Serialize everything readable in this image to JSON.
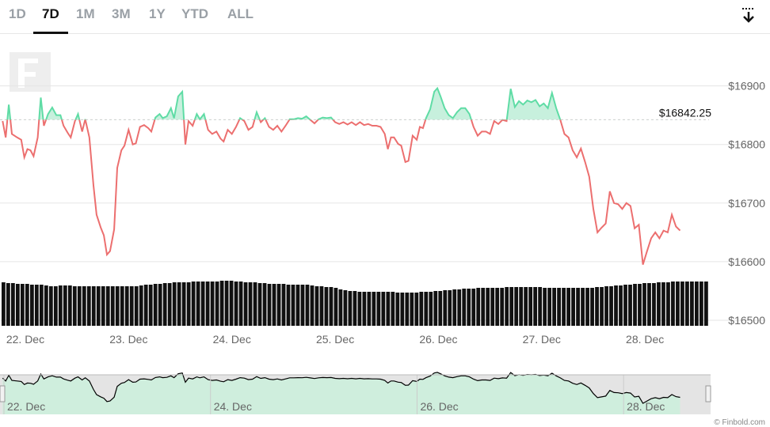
{
  "range_tabs": [
    {
      "label": "1D",
      "active": false
    },
    {
      "label": "7D",
      "active": true
    },
    {
      "label": "1M",
      "active": false
    },
    {
      "label": "3M",
      "active": false
    },
    {
      "label": "1Y",
      "active": false
    },
    {
      "label": "YTD",
      "active": false
    },
    {
      "label": "ALL",
      "active": false
    }
  ],
  "download_icon": "download-arrow-icon",
  "logo_icon": "finbold-f-logo-icon",
  "watermark": "© Finbold.com",
  "colors": {
    "above": "#5fdca5",
    "above_fill": "#c7f0dd",
    "below": "#ec6f6f",
    "volume": "#111111",
    "grid": "#e5e5e5",
    "axis_text": "#666666",
    "navigator_line": "#000000",
    "navigator_fill": "#cfeedd",
    "navigator_mask": "#e4e4e4"
  },
  "chart_data": {
    "type": "line",
    "reference_value": 16842.25,
    "reference_label": "$16842.25",
    "ylim": [
      16500,
      16950
    ],
    "y_ticks": [
      16500,
      16600,
      16700,
      16800,
      16900
    ],
    "y_tick_labels": [
      "$16500",
      "$16600",
      "$16700",
      "$16800",
      "$16900"
    ],
    "x_range": [
      21.77,
      28.62
    ],
    "x_ticks": [
      22,
      23,
      24,
      25,
      26,
      27,
      28
    ],
    "x_tick_labels": [
      "22. Dec",
      "23. Dec",
      "24. Dec",
      "25. Dec",
      "26. Dec",
      "27. Dec",
      "28. Dec"
    ],
    "navigator_x_tick_labels": [
      "22. Dec",
      "24. Dec",
      "26. Dec",
      "28. Dec"
    ],
    "series": [
      {
        "values": [
          [
            21.78,
            16840
          ],
          [
            21.81,
            16812
          ],
          [
            21.84,
            16868
          ],
          [
            21.87,
            16818
          ],
          [
            21.92,
            16812
          ],
          [
            21.96,
            16808
          ],
          [
            21.99,
            16778
          ],
          [
            22.02,
            16792
          ],
          [
            22.05,
            16790
          ],
          [
            22.08,
            16780
          ],
          [
            22.12,
            16812
          ],
          [
            22.15,
            16880
          ],
          [
            22.18,
            16832
          ],
          [
            22.22,
            16852
          ],
          [
            22.26,
            16863
          ],
          [
            22.3,
            16850
          ],
          [
            22.34,
            16850
          ],
          [
            22.37,
            16832
          ],
          [
            22.41,
            16820
          ],
          [
            22.44,
            16812
          ],
          [
            22.48,
            16840
          ],
          [
            22.51,
            16852
          ],
          [
            22.55,
            16822
          ],
          [
            22.58,
            16843
          ],
          [
            22.62,
            16812
          ],
          [
            22.66,
            16730
          ],
          [
            22.69,
            16680
          ],
          [
            22.73,
            16658
          ],
          [
            22.76,
            16645
          ],
          [
            22.79,
            16612
          ],
          [
            22.82,
            16618
          ],
          [
            22.86,
            16655
          ],
          [
            22.89,
            16760
          ],
          [
            22.93,
            16790
          ],
          [
            22.96,
            16798
          ],
          [
            23.0,
            16825
          ],
          [
            23.04,
            16800
          ],
          [
            23.07,
            16802
          ],
          [
            23.11,
            16830
          ],
          [
            23.15,
            16833
          ],
          [
            23.19,
            16828
          ],
          [
            23.22,
            16822
          ],
          [
            23.26,
            16846
          ],
          [
            23.3,
            16852
          ],
          [
            23.33,
            16845
          ],
          [
            23.37,
            16848
          ],
          [
            23.41,
            16862
          ],
          [
            23.44,
            16845
          ],
          [
            23.48,
            16882
          ],
          [
            23.52,
            16890
          ],
          [
            23.55,
            16800
          ],
          [
            23.58,
            16840
          ],
          [
            23.62,
            16832
          ],
          [
            23.66,
            16852
          ],
          [
            23.69,
            16843
          ],
          [
            23.73,
            16852
          ],
          [
            23.77,
            16825
          ],
          [
            23.81,
            16818
          ],
          [
            23.85,
            16822
          ],
          [
            23.89,
            16810
          ],
          [
            23.92,
            16805
          ],
          [
            23.96,
            16825
          ],
          [
            24.0,
            16818
          ],
          [
            24.04,
            16830
          ],
          [
            24.08,
            16845
          ],
          [
            24.12,
            16840
          ],
          [
            24.16,
            16825
          ],
          [
            24.2,
            16830
          ],
          [
            24.24,
            16855
          ],
          [
            24.28,
            16838
          ],
          [
            24.32,
            16845
          ],
          [
            24.36,
            16830
          ],
          [
            24.4,
            16825
          ],
          [
            24.44,
            16832
          ],
          [
            24.48,
            16822
          ],
          [
            24.52,
            16832
          ],
          [
            24.56,
            16843
          ],
          [
            24.6,
            16843
          ],
          [
            24.64,
            16845
          ],
          [
            24.68,
            16844
          ],
          [
            24.72,
            16848
          ],
          [
            24.76,
            16842
          ],
          [
            24.8,
            16836
          ],
          [
            24.84,
            16843
          ],
          [
            24.88,
            16846
          ],
          [
            24.92,
            16845
          ],
          [
            24.96,
            16846
          ],
          [
            25.0,
            16838
          ],
          [
            25.04,
            16835
          ],
          [
            25.08,
            16838
          ],
          [
            25.12,
            16834
          ],
          [
            25.16,
            16838
          ],
          [
            25.2,
            16833
          ],
          [
            25.24,
            16838
          ],
          [
            25.28,
            16833
          ],
          [
            25.32,
            16835
          ],
          [
            25.36,
            16832
          ],
          [
            25.4,
            16832
          ],
          [
            25.44,
            16830
          ],
          [
            25.48,
            16818
          ],
          [
            25.51,
            16792
          ],
          [
            25.54,
            16812
          ],
          [
            25.57,
            16812
          ],
          [
            25.61,
            16801
          ],
          [
            25.64,
            16798
          ],
          [
            25.68,
            16770
          ],
          [
            25.71,
            16772
          ],
          [
            25.75,
            16815
          ],
          [
            25.79,
            16808
          ],
          [
            25.82,
            16830
          ],
          [
            25.85,
            16828
          ],
          [
            25.88,
            16845
          ],
          [
            25.92,
            16860
          ],
          [
            25.96,
            16890
          ],
          [
            25.99,
            16896
          ],
          [
            26.02,
            16882
          ],
          [
            26.06,
            16862
          ],
          [
            26.1,
            16850
          ],
          [
            26.14,
            16845
          ],
          [
            26.18,
            16855
          ],
          [
            26.22,
            16862
          ],
          [
            26.26,
            16862
          ],
          [
            26.3,
            16852
          ],
          [
            26.34,
            16830
          ],
          [
            26.38,
            16815
          ],
          [
            26.42,
            16822
          ],
          [
            26.46,
            16822
          ],
          [
            26.5,
            16818
          ],
          [
            26.54,
            16840
          ],
          [
            26.58,
            16835
          ],
          [
            26.62,
            16842
          ],
          [
            26.66,
            16840
          ],
          [
            26.7,
            16895
          ],
          [
            26.74,
            16864
          ],
          [
            26.78,
            16874
          ],
          [
            26.82,
            16868
          ],
          [
            26.86,
            16875
          ],
          [
            26.9,
            16872
          ],
          [
            26.94,
            16876
          ],
          [
            26.98,
            16865
          ],
          [
            27.02,
            16870
          ],
          [
            27.06,
            16862
          ],
          [
            27.1,
            16888
          ],
          [
            27.14,
            16862
          ],
          [
            27.18,
            16842
          ],
          [
            27.22,
            16818
          ],
          [
            27.26,
            16812
          ],
          [
            27.3,
            16790
          ],
          [
            27.34,
            16778
          ],
          [
            27.38,
            16793
          ],
          [
            27.42,
            16770
          ],
          [
            27.46,
            16745
          ],
          [
            27.5,
            16690
          ],
          [
            27.54,
            16650
          ],
          [
            27.58,
            16658
          ],
          [
            27.62,
            16665
          ],
          [
            27.66,
            16720
          ],
          [
            27.7,
            16700
          ],
          [
            27.74,
            16698
          ],
          [
            27.78,
            16690
          ],
          [
            27.82,
            16700
          ],
          [
            27.86,
            16695
          ],
          [
            27.9,
            16657
          ],
          [
            27.94,
            16663
          ],
          [
            27.98,
            16595
          ],
          [
            28.02,
            16618
          ],
          [
            28.06,
            16640
          ],
          [
            28.1,
            16650
          ],
          [
            28.14,
            16640
          ],
          [
            28.18,
            16653
          ],
          [
            28.22,
            16650
          ],
          [
            28.26,
            16680
          ],
          [
            28.3,
            16660
          ],
          [
            28.34,
            16653
          ]
        ]
      },
      {
        "name": "Volume",
        "values": [
          55,
          54,
          54,
          53,
          53,
          53,
          52,
          52,
          52,
          51,
          50,
          50,
          51,
          51,
          51,
          50,
          50,
          50,
          50,
          50,
          50,
          50,
          50,
          50,
          50,
          50,
          50,
          50,
          50,
          51,
          52,
          52,
          53,
          53,
          54,
          54,
          55,
          55,
          55,
          55,
          56,
          56,
          56,
          56,
          56,
          56,
          57,
          57,
          57,
          56,
          56,
          55,
          55,
          55,
          54,
          54,
          53,
          53,
          53,
          53,
          52,
          52,
          52,
          52,
          52,
          51,
          50,
          50,
          49,
          49,
          48,
          46,
          45,
          44,
          44,
          43,
          43,
          43,
          43,
          43,
          43,
          43,
          43,
          42,
          42,
          42,
          42,
          42,
          43,
          43,
          43,
          44,
          44,
          45,
          45,
          46,
          46,
          47,
          47,
          47,
          48,
          48,
          48,
          48,
          48,
          48,
          49,
          49,
          49,
          49,
          49,
          49,
          49,
          49,
          48,
          48,
          48,
          48,
          48,
          48,
          48,
          48,
          48,
          48,
          48,
          49,
          49,
          50,
          50,
          51,
          51,
          52,
          52,
          53,
          53,
          54,
          54,
          54,
          55,
          55,
          55,
          56,
          56,
          56,
          56,
          56,
          56,
          56,
          56
        ],
        "ylim": [
          0,
          62
        ]
      }
    ]
  }
}
